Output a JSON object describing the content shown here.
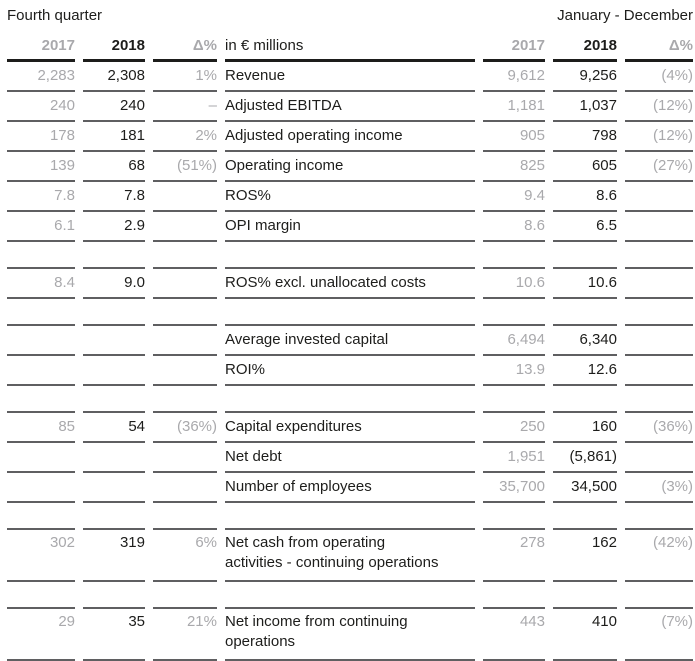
{
  "titles": {
    "left": "Fourth quarter",
    "right": "January - December"
  },
  "columns": {
    "year_prev": "2017",
    "year_curr": "2018",
    "delta": "Δ%",
    "unit_label": "in € millions"
  },
  "rows": [
    {
      "type": "data",
      "label": "Revenue",
      "q4_2017": "2,283",
      "q4_2018": "2,308",
      "q4_delta": "1%",
      "fy_2017": "9,612",
      "fy_2018": "9,256",
      "fy_delta": "(4%)"
    },
    {
      "type": "data",
      "label": "Adjusted EBITDA",
      "q4_2017": "240",
      "q4_2018": "240",
      "q4_delta": "–",
      "fy_2017": "1,181",
      "fy_2018": "1,037",
      "fy_delta": "(12%)"
    },
    {
      "type": "data",
      "label": "Adjusted operating income",
      "q4_2017": "178",
      "q4_2018": "181",
      "q4_delta": "2%",
      "fy_2017": "905",
      "fy_2018": "798",
      "fy_delta": "(12%)"
    },
    {
      "type": "data",
      "label": "Operating income",
      "q4_2017": "139",
      "q4_2018": "68",
      "q4_delta": "(51%)",
      "fy_2017": "825",
      "fy_2018": "605",
      "fy_delta": "(27%)"
    },
    {
      "type": "data",
      "label": "ROS%",
      "q4_2017": "7.8",
      "q4_2018": "7.8",
      "q4_delta": "",
      "fy_2017": "9.4",
      "fy_2018": "8.6",
      "fy_delta": ""
    },
    {
      "type": "data",
      "label": "OPI margin",
      "q4_2017": "6.1",
      "q4_2018": "2.9",
      "q4_delta": "",
      "fy_2017": "8.6",
      "fy_2018": "6.5",
      "fy_delta": ""
    },
    {
      "type": "spacer"
    },
    {
      "type": "data",
      "label": "ROS% excl. unallocated costs",
      "q4_2017": "8.4",
      "q4_2018": "9.0",
      "q4_delta": "",
      "fy_2017": "10.6",
      "fy_2018": "10.6",
      "fy_delta": ""
    },
    {
      "type": "spacer"
    },
    {
      "type": "data",
      "label": "Average invested capital",
      "q4_2017": "",
      "q4_2018": "",
      "q4_delta": "",
      "fy_2017": "6,494",
      "fy_2018": "6,340",
      "fy_delta": ""
    },
    {
      "type": "data",
      "label": "ROI%",
      "q4_2017": "",
      "q4_2018": "",
      "q4_delta": "",
      "fy_2017": "13.9",
      "fy_2018": "12.6",
      "fy_delta": ""
    },
    {
      "type": "spacer"
    },
    {
      "type": "data",
      "label": "Capital expenditures",
      "q4_2017": "85",
      "q4_2018": "54",
      "q4_delta": "(36%)",
      "fy_2017": "250",
      "fy_2018": "160",
      "fy_delta": "(36%)"
    },
    {
      "type": "data",
      "label": "Net debt",
      "q4_2017": "",
      "q4_2018": "",
      "q4_delta": "",
      "fy_2017": "1,951",
      "fy_2018": "(5,861)",
      "fy_delta": ""
    },
    {
      "type": "data",
      "label": "Number of employees",
      "q4_2017": "",
      "q4_2018": "",
      "q4_delta": "",
      "fy_2017": "35,700",
      "fy_2018": "34,500",
      "fy_delta": "(3%)"
    },
    {
      "type": "spacer"
    },
    {
      "type": "data_tall",
      "label": "Net cash from operating\nactivities - continuing operations",
      "q4_2017": "302",
      "q4_2018": "319",
      "q4_delta": "6%",
      "fy_2017": "278",
      "fy_2018": "162",
      "fy_delta": "(42%)"
    },
    {
      "type": "spacer"
    },
    {
      "type": "data_tall",
      "label": "Net income from continuing\noperations",
      "q4_2017": "29",
      "q4_2018": "35",
      "q4_delta": "21%",
      "fy_2017": "443",
      "fy_2018": "410",
      "fy_delta": "(7%)"
    }
  ],
  "colors": {
    "text_dark": "#1d1d1b",
    "text_gray": "#a9a9ac",
    "line_gray": "#5f5f61",
    "line_dark": "#1d1d1b"
  }
}
